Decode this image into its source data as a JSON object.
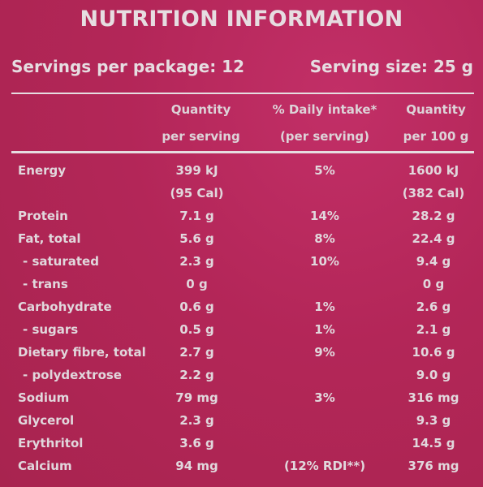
{
  "title": "NUTRITION INFORMATION",
  "servings_per_package": "Servings per package: 12",
  "serving_size": "Serving size: 25 g",
  "headers": {
    "col2_line1": "Quantity",
    "col2_line2": "per serving",
    "col3_line1": "% Daily intake*",
    "col3_line2": "(per serving)",
    "col4_line1": "Quantity",
    "col4_line2": "per 100 g"
  },
  "rows": [
    {
      "name": "Energy",
      "per_serving": "399 kJ",
      "daily": "5%",
      "per_100g": "1600 kJ"
    },
    {
      "name": "",
      "per_serving": "(95 Cal)",
      "daily": "",
      "per_100g": "(382 Cal)"
    },
    {
      "name": "Protein",
      "per_serving": "7.1 g",
      "daily": "14%",
      "per_100g": "28.2 g"
    },
    {
      "name": "Fat, total",
      "per_serving": "5.6 g",
      "daily": "8%",
      "per_100g": "22.4 g"
    },
    {
      "name": "- saturated",
      "per_serving": "2.3 g",
      "daily": "10%",
      "per_100g": "9.4 g"
    },
    {
      "name": "- trans",
      "per_serving": "0 g",
      "daily": "",
      "per_100g": "0 g"
    },
    {
      "name": "Carbohydrate",
      "per_serving": "0.6 g",
      "daily": "1%",
      "per_100g": "2.6 g"
    },
    {
      "name": "- sugars",
      "per_serving": "0.5 g",
      "daily": "1%",
      "per_100g": "2.1 g"
    },
    {
      "name": "Dietary fibre, total",
      "per_serving": "2.7 g",
      "daily": "9%",
      "per_100g": "10.6 g"
    },
    {
      "name": "- polydextrose",
      "per_serving": "2.2 g",
      "daily": "",
      "per_100g": "9.0 g"
    },
    {
      "name": "Sodium",
      "per_serving": "79 mg",
      "daily": "3%",
      "per_100g": "316 mg"
    },
    {
      "name": "Glycerol",
      "per_serving": "2.3 g",
      "daily": "",
      "per_100g": "9.3 g"
    },
    {
      "name": "Erythritol",
      "per_serving": "3.6 g",
      "daily": "",
      "per_100g": "14.5 g"
    },
    {
      "name": "Calcium",
      "per_serving": "94 mg",
      "daily": "(12% RDI**)",
      "per_100g": "376 mg"
    }
  ]
}
